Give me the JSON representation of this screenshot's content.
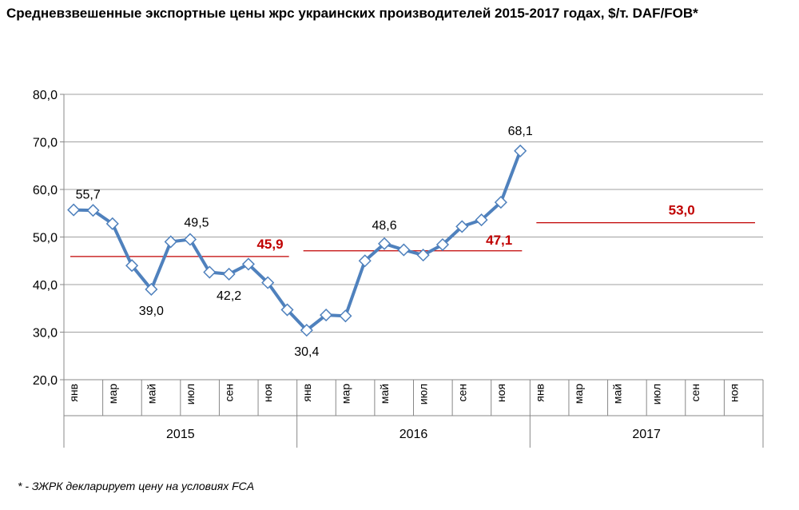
{
  "chart_data": {
    "type": "line",
    "title": "Средневзвешенные экспортные цены жрс украинских производителей 2015-2017 годах, $/т. DAF/FOB*",
    "footnote": "* - ЗЖРК декларирует цену на условиях FCA",
    "ylim": [
      20,
      80
    ],
    "yticks": [
      "20,0",
      "30,0",
      "40,0",
      "50,0",
      "60,0",
      "70,0",
      "80,0"
    ],
    "grid": true,
    "month_labels": [
      "янв",
      "мар",
      "май",
      "июл",
      "сен",
      "ноя"
    ],
    "years": [
      "2015",
      "2016",
      "2017"
    ],
    "series": [
      {
        "color": "#4F81BD",
        "values": [
          55.7,
          55.6,
          52.8,
          44.0,
          39.0,
          49.0,
          49.5,
          42.6,
          42.2,
          44.3,
          40.4,
          34.7,
          30.4,
          33.6,
          33.4,
          45.0,
          48.6,
          47.3,
          46.2,
          48.4,
          52.2,
          53.6,
          57.3,
          68.1
        ],
        "data_labels": [
          {
            "index": 0,
            "text": "55,7"
          },
          {
            "index": 4,
            "text": "39,0"
          },
          {
            "index": 6,
            "text": "49,5"
          },
          {
            "index": 8,
            "text": "42,2"
          },
          {
            "index": 12,
            "text": "30,4"
          },
          {
            "index": 16,
            "text": "48,6"
          },
          {
            "index": 23,
            "text": "68,1"
          }
        ]
      }
    ],
    "averages": [
      {
        "year": "2015",
        "value": 45.9,
        "label": "45,9"
      },
      {
        "year": "2016",
        "value": 47.1,
        "label": "47,1"
      },
      {
        "year": "2017",
        "value": 53.0,
        "label": "53,0"
      }
    ],
    "average_color": "#C00000"
  }
}
